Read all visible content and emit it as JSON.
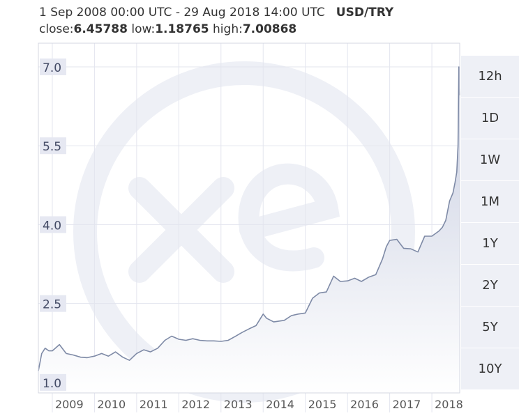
{
  "header": {
    "range_text": "1 Sep 2008 00:00 UTC - 29 Aug 2018 14:00 UTC",
    "pair": "USD/TRY",
    "close_label": "close:",
    "close_value": "6.45788",
    "low_label": "low:",
    "low_value": "1.18765",
    "high_label": "high:",
    "high_value": "7.00868"
  },
  "range_buttons": [
    "12h",
    "1D",
    "1W",
    "1M",
    "1Y",
    "2Y",
    "5Y",
    "10Y"
  ],
  "colors": {
    "line": "#7e8aa6",
    "area_top": "#c7cde0",
    "area_bottom": "#ffffff",
    "grid": "#e3e5ee",
    "label_bg": "#e6e8f2",
    "watermark": "#eef0f6"
  },
  "chart_data": {
    "type": "area",
    "title": "USD/TRY",
    "xlabel": "",
    "ylabel": "",
    "x_tick_labels": [
      "2009",
      "2010",
      "2011",
      "2012",
      "2013",
      "2014",
      "2015",
      "2016",
      "2017",
      "2018"
    ],
    "y_tick_labels": [
      "1.0",
      "2.5",
      "4.0",
      "5.5",
      "7.0"
    ],
    "xlim": [
      2008.67,
      2018.66
    ],
    "ylim": [
      0.8,
      7.45
    ],
    "grid": true,
    "legend": "none",
    "series": [
      {
        "x": [
          2008.67,
          2008.75,
          2008.83,
          2008.92,
          2009.0,
          2009.17,
          2009.33,
          2009.5,
          2009.67,
          2009.83,
          2010.0,
          2010.17,
          2010.33,
          2010.5,
          2010.67,
          2010.83,
          2011.0,
          2011.17,
          2011.33,
          2011.5,
          2011.67,
          2011.83,
          2012.0,
          2012.17,
          2012.33,
          2012.5,
          2012.67,
          2012.83,
          2013.0,
          2013.17,
          2013.33,
          2013.5,
          2013.67,
          2013.83,
          2014.0,
          2014.08,
          2014.25,
          2014.5,
          2014.67,
          2014.83,
          2015.0,
          2015.17,
          2015.33,
          2015.5,
          2015.67,
          2015.83,
          2016.0,
          2016.17,
          2016.33,
          2016.5,
          2016.67,
          2016.83,
          2016.92,
          2017.0,
          2017.17,
          2017.33,
          2017.5,
          2017.67,
          2017.83,
          2018.0,
          2018.17,
          2018.25,
          2018.33,
          2018.42,
          2018.5,
          2018.55,
          2018.59,
          2018.62,
          2018.64,
          2018.66
        ],
        "y": [
          1.22,
          1.55,
          1.65,
          1.6,
          1.6,
          1.72,
          1.55,
          1.52,
          1.48,
          1.47,
          1.5,
          1.55,
          1.5,
          1.58,
          1.48,
          1.42,
          1.55,
          1.62,
          1.58,
          1.65,
          1.8,
          1.88,
          1.82,
          1.8,
          1.83,
          1.8,
          1.79,
          1.79,
          1.78,
          1.8,
          1.87,
          1.95,
          2.02,
          2.08,
          2.3,
          2.22,
          2.15,
          2.18,
          2.27,
          2.3,
          2.32,
          2.6,
          2.7,
          2.72,
          3.02,
          2.92,
          2.93,
          2.98,
          2.92,
          3.0,
          3.05,
          3.35,
          3.58,
          3.7,
          3.72,
          3.55,
          3.54,
          3.48,
          3.78,
          3.78,
          3.88,
          3.95,
          4.08,
          4.45,
          4.6,
          4.8,
          5.0,
          5.5,
          7.0,
          6.46
        ]
      }
    ]
  }
}
